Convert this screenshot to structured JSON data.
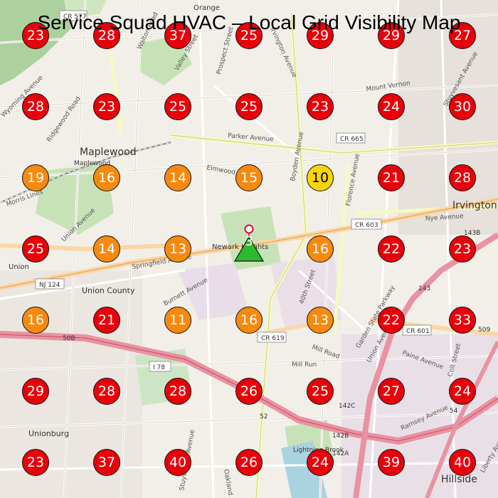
{
  "title": "Service Squad HVAC – Local Grid Visibility Map",
  "colors": {
    "red": "#e8000b",
    "orange": "#f7890f",
    "yellow": "#f7d40d",
    "green": "#2db92d"
  },
  "business_pin": {
    "rank": "3",
    "icon": "business-location-triangle"
  },
  "grid": [
    [
      "23",
      "28",
      "37",
      "25",
      "29",
      "29",
      "27"
    ],
    [
      "28",
      "23",
      "25",
      "25",
      "23",
      "24",
      "30"
    ],
    [
      "19",
      "16",
      "14",
      "15",
      "10",
      "21",
      "28"
    ],
    [
      "25",
      "14",
      "13",
      "",
      "16",
      "22",
      "23"
    ],
    [
      "16",
      "21",
      "11",
      "16",
      "13",
      "22",
      "33"
    ],
    [
      "29",
      "28",
      "28",
      "26",
      "25",
      "27",
      "24"
    ],
    [
      "23",
      "37",
      "40",
      "26",
      "24",
      "39",
      "40"
    ]
  ],
  "map_labels": {
    "places": [
      "Maplewood",
      "Irvington",
      "Newark Heights",
      "Union",
      "Union County",
      "Unionburg",
      "Hillside",
      "Lightning Brook",
      "Orange",
      "Maplewood"
    ],
    "roads": [
      "Walton Road",
      "Valley Street",
      "Prospect Street",
      "Irvington Avenue",
      "Mount Vernon",
      "Stuyvesant Avenue",
      "Parker Avenue",
      "Elmwood",
      "Boyden Avenue",
      "Florence Avenue",
      "Nye Avenue",
      "Springfield Avenue",
      "Burnett Avenue",
      "40th Street",
      "Mill Road",
      "Mill Run",
      "Garden State Parkway",
      "Union Avenue",
      "Paine Avenue",
      "Colt Street",
      "Ramsey Avenue",
      "Liberty Avenue",
      "Oakland Avenue",
      "Stuyvesant Avenue",
      "Ridgewood Road",
      "Wyoming Avenue",
      "Morris Lines",
      "Union Avenue"
    ],
    "shields": [
      "CR 577",
      "CR 665",
      "CR 603",
      "NJ 124",
      "CR 619",
      "CR 601",
      "I 78",
      "50B",
      "52",
      "142B",
      "142C",
      "142A",
      "143",
      "143B",
      "509",
      "54"
    ]
  }
}
